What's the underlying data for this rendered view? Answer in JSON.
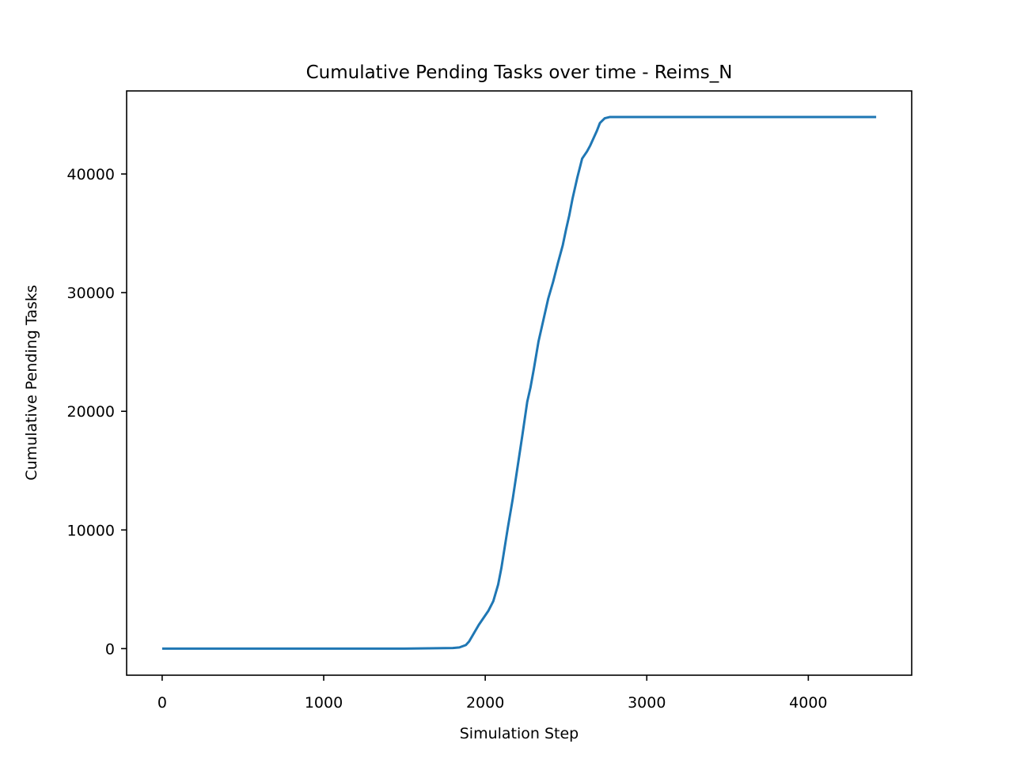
{
  "chart_data": {
    "type": "line",
    "title": "Cumulative Pending Tasks over time - Reims_N",
    "xlabel": "Simulation Step",
    "ylabel": "Cumulative Pending Tasks",
    "xlim": [
      -220,
      4640
    ],
    "ylim": [
      -2240,
      47000
    ],
    "xticks": [
      0,
      1000,
      2000,
      3000,
      4000
    ],
    "xtick_labels": [
      "0",
      "1000",
      "2000",
      "3000",
      "4000"
    ],
    "yticks": [
      0,
      10000,
      20000,
      30000,
      40000
    ],
    "ytick_labels": [
      "0",
      "10000",
      "20000",
      "30000",
      "40000"
    ],
    "grid": false,
    "legend": "none",
    "series": [
      {
        "color": "#1f77b4",
        "x": [
          0,
          500,
          1000,
          1500,
          1600,
          1700,
          1800,
          1840,
          1880,
          1900,
          1930,
          1960,
          1990,
          2020,
          2050,
          2080,
          2100,
          2120,
          2140,
          2170,
          2200,
          2230,
          2260,
          2280,
          2300,
          2330,
          2360,
          2390,
          2420,
          2450,
          2480,
          2500,
          2520,
          2540,
          2570,
          2600,
          2630,
          2650,
          2670,
          2690,
          2710,
          2740,
          2770,
          2790,
          2810,
          2830,
          2860,
          2900,
          3000,
          3500,
          4000,
          4420
        ],
        "y": [
          0,
          0,
          0,
          0,
          20,
          30,
          50,
          100,
          300,
          600,
          1300,
          2000,
          2600,
          3200,
          4000,
          5400,
          6800,
          8500,
          10200,
          12600,
          15300,
          18000,
          20800,
          22000,
          23500,
          25900,
          27700,
          29500,
          30900,
          32500,
          34000,
          35300,
          36500,
          37900,
          39700,
          41300,
          41900,
          42400,
          43000,
          43600,
          44300,
          44700,
          44800,
          44800,
          44800,
          44800,
          44800,
          44800,
          44800,
          44800,
          44800,
          44800
        ]
      }
    ]
  }
}
